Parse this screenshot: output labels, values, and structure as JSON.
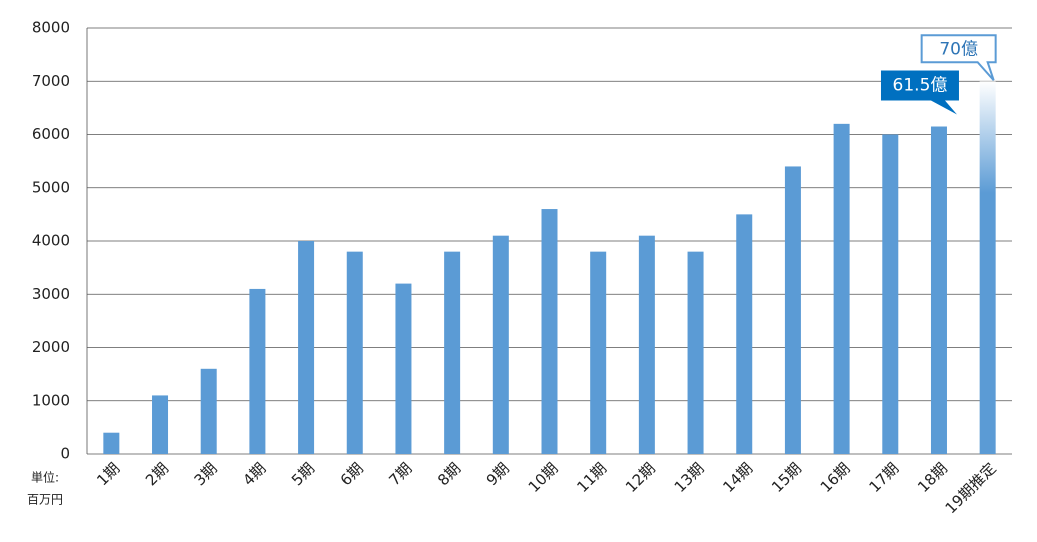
{
  "chart_data": {
    "type": "bar",
    "categories": [
      "1期",
      "2期",
      "3期",
      "4期",
      "5期",
      "6期",
      "7期",
      "8期",
      "9期",
      "10期",
      "11期",
      "12期",
      "13期",
      "14期",
      "15期",
      "16期",
      "17期",
      "18期",
      "19期推定"
    ],
    "values": [
      400,
      1100,
      1600,
      3100,
      4000,
      3800,
      3200,
      3800,
      4100,
      4600,
      3800,
      4100,
      3800,
      4500,
      5400,
      6200,
      6000,
      6150,
      7000
    ],
    "value_labels": [
      null,
      null,
      null,
      null,
      null,
      null,
      null,
      null,
      null,
      null,
      null,
      null,
      null,
      null,
      null,
      null,
      null,
      "61.5億",
      "70億"
    ],
    "color": "#5b9bd5",
    "unit_label": [
      "単位:",
      "百万円"
    ],
    "ylim": [
      0,
      8000
    ],
    "yticks": [
      0,
      1000,
      2000,
      3000,
      4000,
      5000,
      6000,
      7000,
      8000
    ],
    "grid": true
  }
}
